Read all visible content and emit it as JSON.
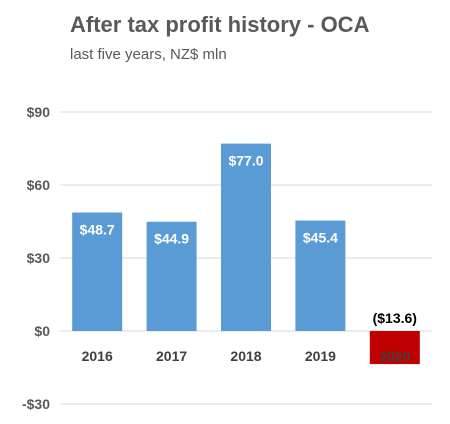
{
  "chart_data": {
    "type": "bar",
    "title": "After tax profit history - OCA",
    "subtitle": "last five years, NZ$ mln",
    "categories": [
      "2016",
      "2017",
      "2018",
      "2019",
      "2020"
    ],
    "values": [
      48.7,
      44.9,
      77.0,
      45.4,
      -13.6
    ],
    "data_labels": [
      "$48.7",
      "$44.9",
      "$77.0",
      "$45.4",
      "($13.6)"
    ],
    "ylim": [
      -30,
      90
    ],
    "yticks": [
      90,
      60,
      30,
      0,
      -30
    ],
    "ytick_labels": [
      "$90",
      "$60",
      "$30",
      "$0",
      "-$30"
    ],
    "grid": true,
    "colors": {
      "positive": "#5b9bd5",
      "negative": "#c00000",
      "grid": "#d9d9d9",
      "label_on_bar": "#ffffff",
      "label_negative": "#000000",
      "negative_category_label": "#808080"
    }
  }
}
